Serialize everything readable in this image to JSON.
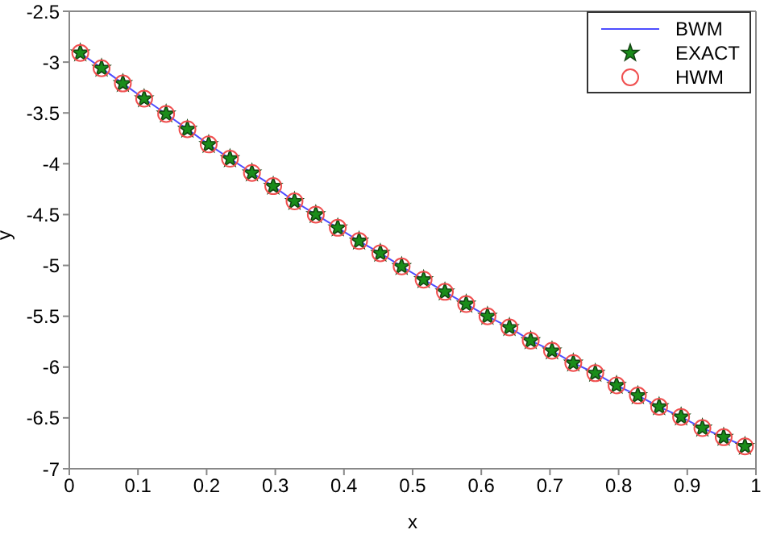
{
  "chart_data": {
    "type": "line",
    "xlabel": "x",
    "ylabel": "y",
    "x": [
      0.016,
      0.047,
      0.078,
      0.109,
      0.141,
      0.172,
      0.203,
      0.234,
      0.266,
      0.297,
      0.328,
      0.359,
      0.391,
      0.422,
      0.453,
      0.484,
      0.516,
      0.547,
      0.578,
      0.609,
      0.641,
      0.672,
      0.703,
      0.734,
      0.766,
      0.797,
      0.828,
      0.859,
      0.891,
      0.922,
      0.953,
      0.984
    ],
    "series": [
      {
        "name": "BWM",
        "type": "line",
        "color": "#4d4dff",
        "marker": "none",
        "values": [
          -2.91,
          -3.06,
          -3.21,
          -3.36,
          -3.51,
          -3.66,
          -3.81,
          -3.95,
          -4.09,
          -4.22,
          -4.37,
          -4.5,
          -4.63,
          -4.76,
          -4.88,
          -5.01,
          -5.14,
          -5.26,
          -5.38,
          -5.5,
          -5.61,
          -5.74,
          -5.84,
          -5.96,
          -6.06,
          -6.18,
          -6.28,
          -6.39,
          -6.49,
          -6.6,
          -6.69,
          -6.78
        ]
      },
      {
        "name": "EXACT",
        "type": "scatter",
        "color": "#1a8c1a",
        "marker": "star",
        "values": [
          -2.91,
          -3.06,
          -3.21,
          -3.36,
          -3.51,
          -3.66,
          -3.81,
          -3.95,
          -4.09,
          -4.22,
          -4.37,
          -4.5,
          -4.63,
          -4.76,
          -4.88,
          -5.01,
          -5.14,
          -5.26,
          -5.38,
          -5.5,
          -5.61,
          -5.74,
          -5.84,
          -5.96,
          -6.06,
          -6.18,
          -6.28,
          -6.39,
          -6.49,
          -6.6,
          -6.69,
          -6.78
        ]
      },
      {
        "name": "HWM",
        "type": "scatter",
        "color": "#f05050",
        "marker": "circle",
        "values": [
          -2.91,
          -3.06,
          -3.21,
          -3.36,
          -3.51,
          -3.66,
          -3.81,
          -3.95,
          -4.09,
          -4.22,
          -4.37,
          -4.5,
          -4.63,
          -4.76,
          -4.88,
          -5.01,
          -5.14,
          -5.26,
          -5.38,
          -5.5,
          -5.61,
          -5.74,
          -5.84,
          -5.96,
          -6.06,
          -6.18,
          -6.28,
          -6.39,
          -6.49,
          -6.6,
          -6.69,
          -6.78
        ]
      }
    ],
    "xlim": [
      0,
      1
    ],
    "xticks": [
      0,
      0.1,
      0.2,
      0.3,
      0.4,
      0.5,
      0.6,
      0.7,
      0.8,
      0.9,
      1
    ],
    "ylim": [
      -7,
      -2.5
    ],
    "yticks": [
      -7,
      -6.5,
      -6,
      -5.5,
      -5,
      -4.5,
      -4,
      -3.5,
      -3,
      -2.5
    ],
    "grid": false,
    "legend": "top right"
  }
}
